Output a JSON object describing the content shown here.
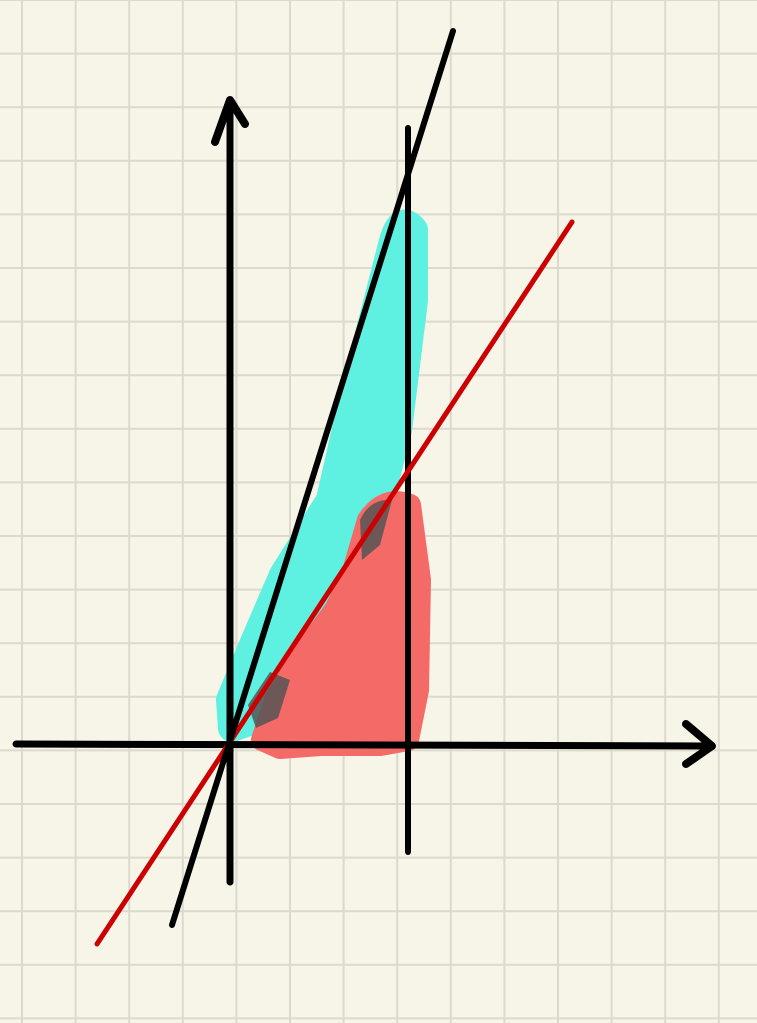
{
  "paper": {
    "background": "#f7f4e8",
    "grid_color": "#dcdacd",
    "grid": true
  },
  "axes": {
    "color": "#000000",
    "arrows": true
  },
  "lines": [
    {
      "id": "steep-line",
      "color": "#000000"
    },
    {
      "id": "red-line",
      "color": "#cc0000"
    },
    {
      "id": "vertical-bound-line",
      "color": "#000000"
    }
  ],
  "shaded_regions": [
    {
      "id": "cyan-region",
      "color": "#5ef0e0"
    },
    {
      "id": "red-region",
      "color": "#f46a66"
    }
  ]
}
